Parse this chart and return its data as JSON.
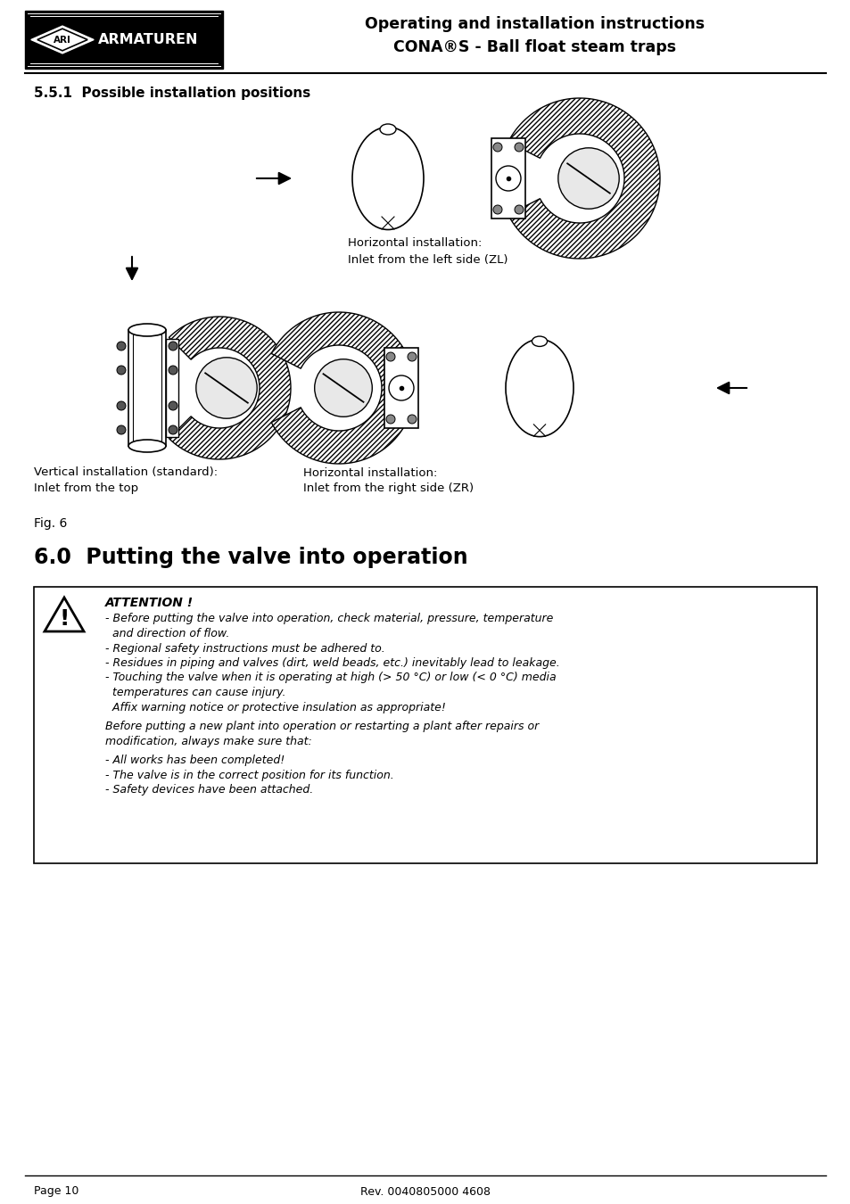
{
  "header_title_line1": "Operating and installation instructions",
  "header_title_line2": "CONA®S - Ball float steam traps",
  "company_name": "ARMATUREN",
  "section_title": "5.5.1  Possible installation positions",
  "caption_top_right_line1": "Horizontal installation:",
  "caption_top_right_line2": "Inlet from the left side (ZL)",
  "caption_bottom_left_line1": "Vertical installation (standard):",
  "caption_bottom_left_line2": "Inlet from the top",
  "caption_bottom_right_line1": "Horizontal installation:",
  "caption_bottom_right_line2": "Inlet from the right side (ZR)",
  "fig_label": "Fig. 6",
  "section2_title": "6.0  Putting the valve into operation",
  "attention_title": "ATTENTION !",
  "attention_lines": [
    "- Before putting the valve into operation, check material, pressure, temperature",
    "  and direction of flow.",
    "- Regional safety instructions must be adhered to.",
    "- Residues in piping and valves (dirt, weld beads, etc.) inevitably lead to leakage.",
    "- Touching the valve when it is operating at high (> 50 °C) or low (< 0 °C) media",
    "  temperatures can cause injury.",
    "  Affix warning notice or protective insulation as appropriate!"
  ],
  "attention_para": [
    "Before putting a new plant into operation or restarting a plant after repairs or",
    "modification, always make sure that:"
  ],
  "attention_bullets": [
    "- All works has been completed!",
    "- The valve is in the correct position for its function.",
    "- Safety devices have been attached."
  ],
  "footer_left": "Page 10",
  "footer_center": "Rev. 0040805000 4608",
  "bg_color": "#ffffff",
  "text_color": "#000000",
  "hatch_color": "#aaaaaa",
  "logo_bg": "#000000",
  "logo_fg": "#ffffff"
}
